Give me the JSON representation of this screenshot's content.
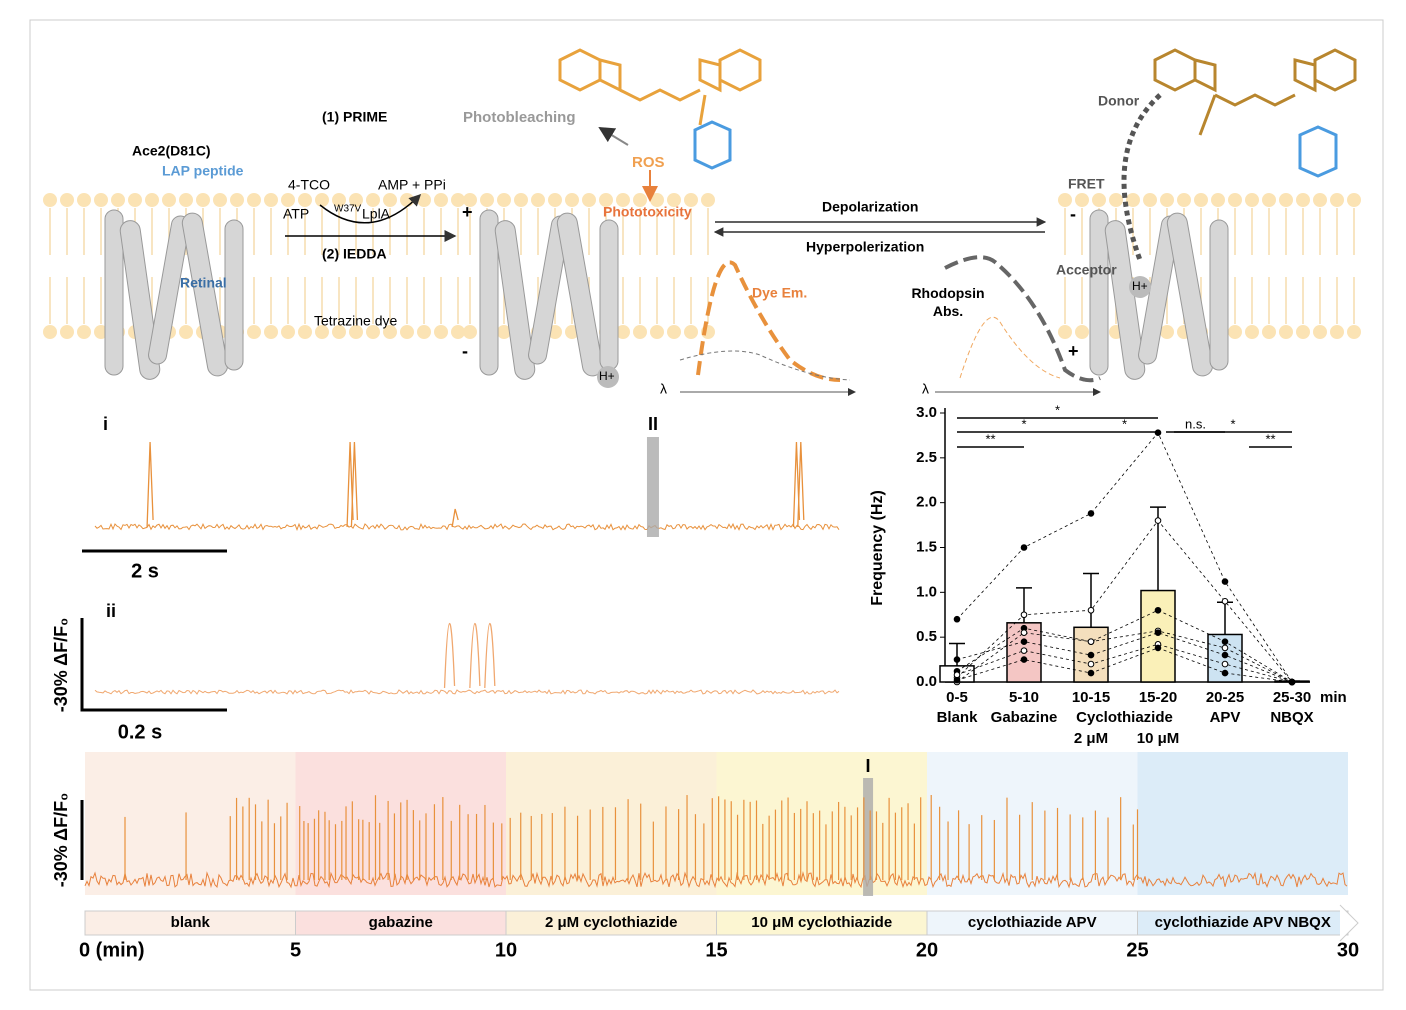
{
  "schematic": {
    "ace2": "Ace2(D81C)",
    "lap": "LAP peptide",
    "retinal": "Retinal",
    "prime": "(1) PRIME",
    "tco": "4-TCO",
    "amp": "AMP + PPi",
    "atp": "ATP",
    "enzyme_sup": "W37V",
    "enzyme": "LplA",
    "iedda": "(2) IEDDA",
    "tetrazine": "Tetrazine dye",
    "photobleaching": "Photobleaching",
    "ros": "ROS",
    "phototoxicity": "Phototoxicity",
    "depolarization": "Depolarization",
    "hyperpolarization": "Hyperpolerization",
    "dye_em": "Dye Em.",
    "rhodopsin_abs": "Rhodopsin\nAbs.",
    "donor": "Donor",
    "fret": "FRET",
    "acceptor": "Acceptor",
    "proton": "H+",
    "lambda": "λ",
    "plus": "+",
    "minus": "-"
  },
  "trace_i": {
    "label": "i",
    "scale_label": "2 s",
    "highlight_label": "II",
    "highlight": 7.7,
    "spikes": [
      0.76,
      3.52,
      3.58,
      4.97,
      9.68,
      9.74
    ],
    "small_spikes": [
      4.97
    ]
  },
  "trace_ii": {
    "label": "ii",
    "scale_label": "0.2 s",
    "dff_label": "-30% ΔF/F₀",
    "spikes": [
      0.546,
      0.585,
      0.608
    ]
  },
  "timeline": {
    "dff_label": "-30% ΔF/F₀",
    "highlight_label": "I",
    "highlight": 18.6,
    "xticks": [
      {
        "value": 0,
        "label": "0 (min)"
      },
      5,
      10,
      15,
      20,
      25,
      30
    ],
    "segments": [
      {
        "label": "blank",
        "color": "#fbeee6"
      },
      {
        "label": "gabazine",
        "color": "#fbe0de"
      },
      {
        "label": "2 μM cyclothiazide",
        "color": "#fbf0d8"
      },
      {
        "label": "10 μM cyclothiazide",
        "color": "#fcf6d2"
      },
      {
        "label": "cyclothiazide APV",
        "color": "#eef5fb"
      },
      {
        "label": "cyclothiazide APV  NBQX",
        "color": "#dcecf8"
      }
    ],
    "spikes": [
      0.95,
      2.4,
      3.45,
      3.6,
      3.75,
      3.9,
      4.05,
      4.2,
      4.35,
      4.5,
      4.65,
      4.8,
      5.1,
      5.2,
      5.3,
      5.45,
      5.55,
      5.7,
      5.8,
      5.95,
      6.1,
      6.2,
      6.35,
      6.5,
      6.6,
      6.75,
      6.9,
      7.0,
      7.2,
      7.35,
      7.5,
      7.65,
      7.8,
      7.95,
      8.1,
      8.3,
      8.5,
      8.7,
      8.9,
      9.1,
      9.3,
      9.5,
      9.7,
      9.9,
      10.1,
      10.35,
      10.6,
      10.85,
      11.1,
      11.4,
      11.7,
      12.0,
      12.3,
      12.6,
      12.9,
      13.2,
      13.5,
      13.8,
      14.1,
      14.3,
      14.5,
      14.7,
      14.9,
      15.05,
      15.2,
      15.35,
      15.5,
      15.65,
      15.8,
      15.95,
      16.1,
      16.25,
      16.4,
      16.55,
      16.7,
      16.85,
      17.0,
      17.15,
      17.3,
      17.45,
      17.6,
      17.75,
      17.9,
      18.05,
      18.2,
      18.35,
      18.5,
      18.65,
      18.8,
      18.95,
      19.1,
      19.25,
      19.4,
      19.55,
      19.7,
      19.85,
      20.1,
      20.3,
      20.5,
      20.75,
      21.0,
      21.3,
      21.6,
      21.9,
      22.2,
      22.5,
      22.8,
      23.1,
      23.4,
      23.7,
      24.0,
      24.3,
      24.6,
      24.9,
      25.0
    ]
  },
  "chart_data": {
    "type": "bar",
    "y_label": "Frequency (Hz)",
    "x_unit": "min",
    "categories": [
      "0-5",
      "5-10",
      "10-15",
      "15-20",
      "20-25",
      "25-30"
    ],
    "group_labels": [
      "Blank",
      "Gabazine",
      "Cyclothiazide",
      "APV",
      "NBQX"
    ],
    "dose_labels": [
      "2 μM",
      "10 μM"
    ],
    "values": [
      0.18,
      0.66,
      0.61,
      1.02,
      0.53,
      0.01
    ],
    "errors": [
      0.25,
      0.39,
      0.6,
      0.93,
      0.36,
      0.0
    ],
    "colors": [
      "#ffffff",
      "#f4c6c4",
      "#f4dfbd",
      "#faf0b8",
      "#cde3f2",
      "#ffffff"
    ],
    "cells": [
      [
        0.7,
        1.5,
        1.88,
        2.78,
        1.12,
        0.0
      ],
      [
        0.05,
        0.75,
        0.8,
        1.8,
        0.9,
        0.0
      ],
      [
        0.12,
        0.6,
        0.45,
        0.8,
        0.45,
        0.0
      ],
      [
        0.0,
        0.55,
        0.45,
        0.57,
        0.38,
        0.0
      ],
      [
        0.25,
        0.45,
        0.3,
        0.55,
        0.3,
        0.0
      ],
      [
        0.08,
        0.35,
        0.2,
        0.42,
        0.2,
        0.0
      ],
      [
        0.02,
        0.25,
        0.1,
        0.38,
        0.1,
        0.0
      ]
    ],
    "ylim": [
      0,
      3
    ],
    "yticks": [
      {
        "value": 0,
        "label": "0.0"
      },
      0.5,
      {
        "value": 1,
        "label": "1.0"
      },
      1.5,
      {
        "value": 2,
        "label": "2.0"
      },
      2.5,
      {
        "value": 3,
        "label": "3.0"
      }
    ],
    "significance": [
      {
        "from": 0,
        "to": 3,
        "label": "*"
      },
      {
        "from": 0,
        "to": 2,
        "label": "*"
      },
      {
        "from": 0,
        "to": 1,
        "label": "**"
      },
      {
        "from": 2,
        "to": 3,
        "label": "*"
      },
      {
        "from": 3,
        "to": 4,
        "label": "n.s."
      },
      {
        "from": 3,
        "to": 5,
        "label": "*"
      },
      {
        "from": 4,
        "to": 5,
        "label": "**"
      }
    ]
  }
}
